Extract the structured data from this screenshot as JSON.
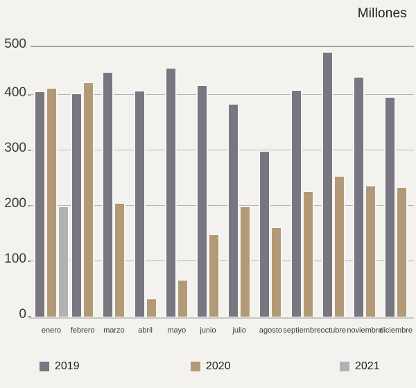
{
  "chart_data": {
    "type": "bar",
    "title": "Millones",
    "categories": [
      "enero",
      "febrero",
      "marzo",
      "abril",
      "mayo",
      "junio",
      "julio",
      "agosto",
      "septiembre",
      "octubre",
      "noviembre",
      "diciembre"
    ],
    "series": [
      {
        "name": "2019",
        "color": "#787680",
        "values": [
          405,
          401,
          445,
          407,
          454,
          418,
          382,
          297,
          408,
          487,
          435,
          395
        ]
      },
      {
        "name": "2020",
        "color": "#b29a78",
        "values": [
          412,
          424,
          203,
          31,
          65,
          147,
          197,
          160,
          224,
          252,
          234,
          232
        ]
      },
      {
        "name": "2021",
        "color": "#b2b1b5",
        "values": [
          197,
          null,
          null,
          null,
          null,
          null,
          null,
          null,
          null,
          null,
          null,
          null
        ]
      }
    ],
    "xlabel": "",
    "ylabel": "",
    "ylim": [
      0,
      500
    ],
    "yticks": [
      0,
      100,
      200,
      300,
      400,
      500
    ],
    "grid": "horizontal",
    "legend_position": "bottom"
  },
  "colors": {
    "background": "#f4f2ef",
    "series_2019": "#787680",
    "series_2020": "#b29a78",
    "series_2021": "#b2b1b5",
    "gridline": "#b4b1ae",
    "axis_line": "#c8c5c2",
    "top_line": "#a8a6a4",
    "text": "#3a3a3a",
    "title_text": "#1f1f1f"
  },
  "legend": {
    "items": [
      {
        "label": "2019",
        "color": "#787680"
      },
      {
        "label": "2020",
        "color": "#b29a78"
      },
      {
        "label": "2021",
        "color": "#b2b1b5"
      }
    ]
  }
}
